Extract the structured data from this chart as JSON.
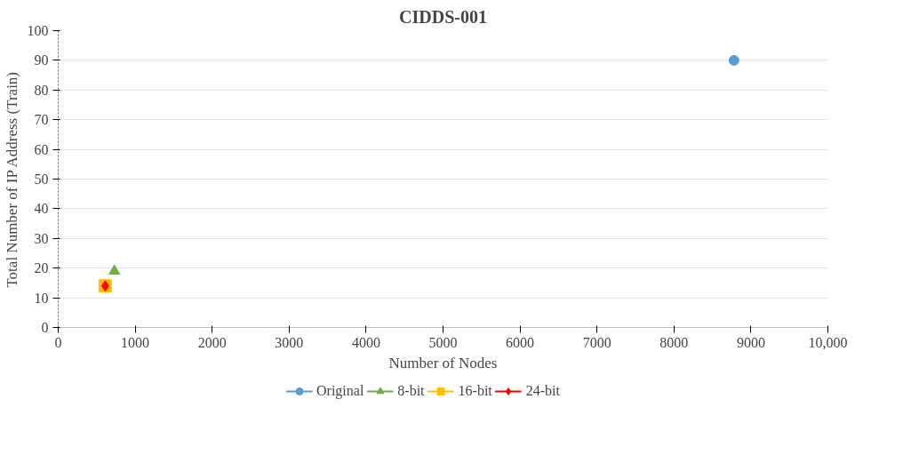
{
  "chart_data": {
    "type": "scatter",
    "title": "CIDDS-001",
    "xlabel": "Number of Nodes",
    "ylabel": "Total Number of IP Address (Train)",
    "xlim": [
      0,
      10000
    ],
    "xticks": [
      0,
      1000,
      2000,
      3000,
      4000,
      5000,
      6000,
      7000,
      8000,
      9000,
      {
        "value": 10000,
        "label": "10,000"
      }
    ],
    "ylim": [
      0,
      100
    ],
    "yticks": [
      0,
      10,
      20,
      30,
      40,
      50,
      60,
      70,
      80,
      90,
      100
    ],
    "grid": "y",
    "legend": "bottom",
    "series": [
      {
        "name": "Original",
        "color": "#5b9bd5",
        "marker": "circle",
        "x": [
          8780
        ],
        "values": [
          90
        ]
      },
      {
        "name": "8-bit",
        "color": "#70ad47",
        "marker": "triangle",
        "x": [
          730
        ],
        "values": [
          19
        ]
      },
      {
        "name": "16-bit",
        "color": "#ffc000",
        "marker": "square",
        "x": [
          610
        ],
        "values": [
          14
        ]
      },
      {
        "name": "24-bit",
        "color": "#ff0000",
        "marker": "diamond",
        "x": [
          610
        ],
        "values": [
          14
        ]
      }
    ]
  }
}
